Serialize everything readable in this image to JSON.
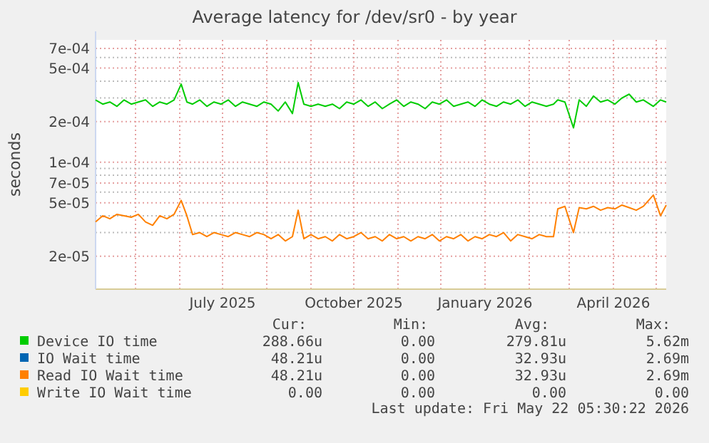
{
  "chart_data": {
    "type": "line",
    "title": "Average latency for /dev/sr0 - by year",
    "ylabel": "seconds",
    "log": "y",
    "grid": true,
    "legend": "bottom",
    "marker": "none",
    "line_style": "solid",
    "xlim": [
      "2025-04-03",
      "2026-05-08"
    ],
    "xticks": [
      {
        "value": "2025-05-01",
        "label": null
      },
      {
        "value": "2025-06-01",
        "label": null
      },
      {
        "value": "2025-07-01",
        "label": "July 2025"
      },
      {
        "value": "2025-08-01",
        "label": null
      },
      {
        "value": "2025-09-01",
        "label": null
      },
      {
        "value": "2025-10-01",
        "label": "October 2025"
      },
      {
        "value": "2025-11-01",
        "label": null
      },
      {
        "value": "2025-12-01",
        "label": null
      },
      {
        "value": "2026-01-01",
        "label": "January 2026"
      },
      {
        "value": "2026-02-01",
        "label": null
      },
      {
        "value": "2026-03-01",
        "label": null
      },
      {
        "value": "2026-04-01",
        "label": "April 2026"
      },
      {
        "value": "2026-05-01",
        "label": null
      }
    ],
    "ylim": [
      1.14e-05,
      0.00081
    ],
    "yticks": [
      {
        "value": 2e-05,
        "label": "2e-05"
      },
      {
        "value": 3e-05,
        "label": null
      },
      {
        "value": 4e-05,
        "label": null
      },
      {
        "value": 5e-05,
        "label": "5e-05"
      },
      {
        "value": 6e-05,
        "label": null
      },
      {
        "value": 7e-05,
        "label": "7e-05"
      },
      {
        "value": 8e-05,
        "label": null
      },
      {
        "value": 9e-05,
        "label": null
      },
      {
        "value": 0.0001,
        "label": "1e-04"
      },
      {
        "value": 0.0002,
        "label": "2e-04"
      },
      {
        "value": 0.0003,
        "label": null
      },
      {
        "value": 0.0004,
        "label": null
      },
      {
        "value": 0.0005,
        "label": "5e-04"
      },
      {
        "value": 0.0006,
        "label": null
      },
      {
        "value": 0.0007,
        "label": "7e-04"
      }
    ],
    "x": [
      "2025-04-03",
      "2025-04-08",
      "2025-04-13",
      "2025-04-18",
      "2025-04-23",
      "2025-04-28",
      "2025-05-03",
      "2025-05-08",
      "2025-05-13",
      "2025-05-18",
      "2025-05-23",
      "2025-05-28",
      "2025-06-02",
      "2025-06-06",
      "2025-06-10",
      "2025-06-15",
      "2025-06-20",
      "2025-06-25",
      "2025-06-30",
      "2025-07-05",
      "2025-07-10",
      "2025-07-15",
      "2025-07-20",
      "2025-07-25",
      "2025-07-30",
      "2025-08-04",
      "2025-08-09",
      "2025-08-14",
      "2025-08-19",
      "2025-08-23",
      "2025-08-27",
      "2025-09-01",
      "2025-09-06",
      "2025-09-11",
      "2025-09-16",
      "2025-09-21",
      "2025-09-26",
      "2025-10-01",
      "2025-10-06",
      "2025-10-11",
      "2025-10-16",
      "2025-10-21",
      "2025-10-26",
      "2025-10-31",
      "2025-11-05",
      "2025-11-10",
      "2025-11-15",
      "2025-11-20",
      "2025-11-25",
      "2025-11-30",
      "2025-12-05",
      "2025-12-10",
      "2025-12-15",
      "2025-12-20",
      "2025-12-25",
      "2025-12-30",
      "2026-01-04",
      "2026-01-09",
      "2026-01-14",
      "2026-01-19",
      "2026-01-24",
      "2026-01-29",
      "2026-02-03",
      "2026-02-08",
      "2026-02-13",
      "2026-02-18",
      "2026-02-21",
      "2026-02-26",
      "2026-03-04",
      "2026-03-08",
      "2026-03-13",
      "2026-03-18",
      "2026-03-23",
      "2026-03-28",
      "2026-04-02",
      "2026-04-07",
      "2026-04-12",
      "2026-04-17",
      "2026-04-22",
      "2026-04-29",
      "2026-05-04",
      "2026-05-08"
    ],
    "series": [
      {
        "name": "Device IO time",
        "color": "#00cc00",
        "values": [
          0.00029,
          0.00027,
          0.00028,
          0.00026,
          0.00029,
          0.00027,
          0.00028,
          0.00029,
          0.00026,
          0.00028,
          0.00027,
          0.00029,
          0.00038,
          0.00028,
          0.00027,
          0.00029,
          0.00026,
          0.00028,
          0.00027,
          0.00029,
          0.00026,
          0.00028,
          0.00027,
          0.00026,
          0.00028,
          0.00027,
          0.00024,
          0.00028,
          0.00023,
          0.00039,
          0.00027,
          0.00026,
          0.00027,
          0.00026,
          0.00027,
          0.00025,
          0.00028,
          0.00027,
          0.00029,
          0.00026,
          0.00028,
          0.00025,
          0.00027,
          0.00029,
          0.00026,
          0.00028,
          0.00027,
          0.00025,
          0.00028,
          0.00027,
          0.00029,
          0.00026,
          0.00027,
          0.00028,
          0.00026,
          0.00029,
          0.00027,
          0.00026,
          0.00028,
          0.00027,
          0.00029,
          0.00026,
          0.00028,
          0.00027,
          0.00026,
          0.00027,
          0.00029,
          0.00028,
          0.00018,
          0.00029,
          0.00026,
          0.00031,
          0.00028,
          0.00029,
          0.00027,
          0.0003,
          0.00032,
          0.00028,
          0.00029,
          0.00026,
          0.00029,
          0.00028
        ]
      },
      {
        "name": "IO Wait time",
        "color": "#0066b3",
        "values": [
          null,
          null,
          null,
          null,
          null,
          null,
          null,
          null,
          null,
          null,
          null,
          null,
          null,
          null,
          null,
          null,
          null,
          null,
          null,
          null,
          null,
          null,
          null,
          null,
          null,
          null,
          null,
          null,
          null,
          null,
          null,
          null,
          null,
          null,
          null,
          null,
          null,
          null,
          null,
          null,
          null,
          null,
          null,
          null,
          null,
          null,
          null,
          null,
          null,
          null,
          null,
          null,
          null,
          null,
          null,
          null,
          null,
          null,
          null,
          null,
          null,
          null,
          null,
          null,
          null,
          null,
          null,
          null,
          null,
          null,
          null,
          null,
          null,
          null,
          null,
          null,
          null,
          null,
          null,
          null,
          null,
          null
        ]
      },
      {
        "name": "Read IO Wait time",
        "color": "#ff8000",
        "values": [
          3.6e-05,
          4e-05,
          3.8e-05,
          4.1e-05,
          4e-05,
          3.9e-05,
          4.1e-05,
          3.6e-05,
          3.4e-05,
          4e-05,
          3.8e-05,
          4.1e-05,
          5.2e-05,
          4e-05,
          2.9e-05,
          3e-05,
          2.8e-05,
          3e-05,
          2.9e-05,
          2.8e-05,
          3e-05,
          2.9e-05,
          2.8e-05,
          3e-05,
          2.9e-05,
          2.7e-05,
          2.9e-05,
          2.6e-05,
          2.8e-05,
          4.4e-05,
          2.7e-05,
          2.9e-05,
          2.7e-05,
          2.8e-05,
          2.6e-05,
          2.9e-05,
          2.7e-05,
          2.8e-05,
          3e-05,
          2.7e-05,
          2.8e-05,
          2.6e-05,
          2.9e-05,
          2.7e-05,
          2.8e-05,
          2.6e-05,
          2.8e-05,
          2.7e-05,
          2.9e-05,
          2.6e-05,
          2.8e-05,
          2.7e-05,
          2.9e-05,
          2.6e-05,
          2.8e-05,
          2.7e-05,
          2.9e-05,
          2.8e-05,
          3e-05,
          2.6e-05,
          2.9e-05,
          2.8e-05,
          2.7e-05,
          2.9e-05,
          2.8e-05,
          2.8e-05,
          4.5e-05,
          4.7e-05,
          3e-05,
          4.6e-05,
          4.5e-05,
          4.7e-05,
          4.4e-05,
          4.6e-05,
          4.5e-05,
          4.8e-05,
          4.6e-05,
          4.4e-05,
          4.7e-05,
          5.7e-05,
          4e-05,
          4.8e-05
        ]
      },
      {
        "name": "Write IO Wait time",
        "color": "#ffcc00",
        "values": [
          null,
          null,
          null,
          null,
          null,
          null,
          null,
          null,
          null,
          null,
          null,
          null,
          null,
          null,
          null,
          null,
          null,
          null,
          null,
          null,
          null,
          null,
          null,
          null,
          null,
          null,
          null,
          null,
          null,
          null,
          null,
          null,
          null,
          null,
          null,
          null,
          null,
          null,
          null,
          null,
          null,
          null,
          null,
          null,
          null,
          null,
          null,
          null,
          null,
          null,
          null,
          null,
          null,
          null,
          null,
          null,
          null,
          null,
          null,
          null,
          null,
          null,
          null,
          null,
          null,
          null,
          null,
          null,
          null,
          null,
          null,
          null,
          null,
          null,
          null,
          null,
          null,
          null,
          null,
          null,
          null,
          null
        ]
      }
    ],
    "annotations": [
      "Cur:",
      "Min:",
      "Avg:",
      "Max:",
      "288.66u",
      "0.00",
      "279.81u",
      "5.62m",
      "48.21u",
      "0.00",
      "32.93u",
      "2.69m",
      "48.21u",
      "0.00",
      "32.93u",
      "2.69m",
      "0.00",
      "0.00",
      "0.00",
      "0.00",
      "Last update: Fri May 22 05:30:22 2026"
    ]
  }
}
